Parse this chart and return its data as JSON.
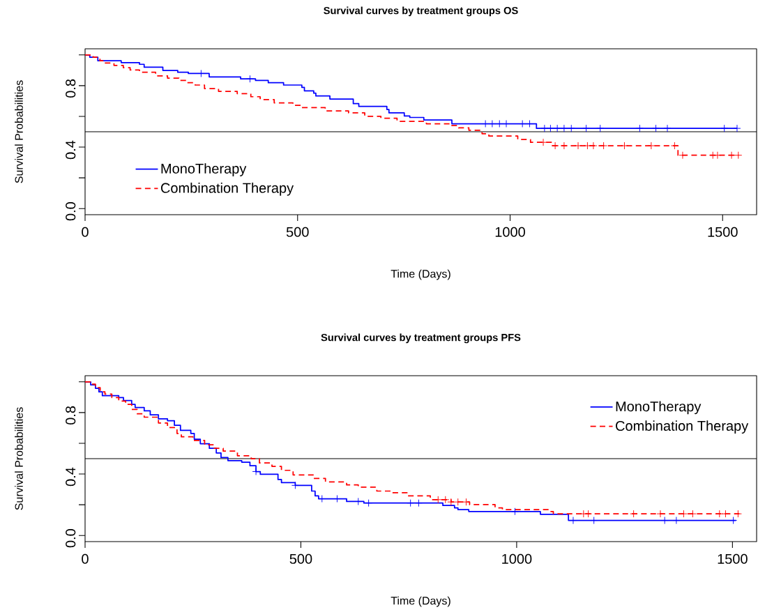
{
  "chart_data": [
    {
      "type": "step",
      "title": "Survival curves by treatment groups OS",
      "xlabel": "Time (Days)",
      "ylabel": "Survival Probabilities",
      "xlim": [
        0,
        1580
      ],
      "ylim": [
        -0.04,
        1.04
      ],
      "xticks": [
        0,
        500,
        1000,
        1500
      ],
      "yticks": [
        {
          "value": 0,
          "label": "0.0"
        },
        {
          "value": 0.2,
          "label": null
        },
        {
          "value": 0.4,
          "label": "0.4"
        },
        {
          "value": 0.6,
          "label": null
        },
        {
          "value": 0.8,
          "label": "0.8"
        },
        {
          "value": 1.0,
          "label": null
        }
      ],
      "legend": "bottom left",
      "ref_lines": [
        {
          "axis": "y",
          "value": 0.5,
          "color": "#000000"
        }
      ],
      "series": [
        {
          "name": "MonoTherapy",
          "color": "#0000ff",
          "line_style": "solid",
          "x": [
            0,
            11,
            30,
            85,
            128,
            139,
            183,
            218,
            243,
            292,
            366,
            401,
            431,
            467,
            510,
            516,
            538,
            543,
            576,
            631,
            644,
            710,
            715,
            751,
            764,
            797,
            863,
            1062,
            1534
          ],
          "values": [
            1.0,
            0.985,
            0.962,
            0.95,
            0.939,
            0.92,
            0.899,
            0.887,
            0.879,
            0.857,
            0.844,
            0.834,
            0.819,
            0.804,
            0.789,
            0.766,
            0.751,
            0.733,
            0.713,
            0.683,
            0.665,
            0.645,
            0.623,
            0.603,
            0.593,
            0.577,
            0.552,
            0.522,
            0.522
          ]
        },
        {
          "name": "Combination Therapy",
          "color": "#ff0000",
          "line_style": "dashed",
          "x": [
            0,
            19,
            35,
            46,
            68,
            90,
            106,
            128,
            166,
            194,
            221,
            238,
            259,
            281,
            314,
            358,
            390,
            412,
            445,
            489,
            510,
            565,
            620,
            658,
            696,
            734,
            803,
            860,
            879,
            903,
            934,
            950,
            1018,
            1048,
            1100,
            1395,
            1537
          ],
          "values": [
            1.0,
            0.985,
            0.962,
            0.947,
            0.932,
            0.917,
            0.902,
            0.887,
            0.864,
            0.849,
            0.834,
            0.819,
            0.804,
            0.781,
            0.763,
            0.748,
            0.728,
            0.709,
            0.688,
            0.672,
            0.657,
            0.635,
            0.623,
            0.6,
            0.588,
            0.567,
            0.552,
            0.54,
            0.525,
            0.51,
            0.487,
            0.472,
            0.449,
            0.431,
            0.409,
            0.347,
            0.347
          ]
        },
        {
          "type": "scatter",
          "marker": "cross",
          "color": "#0000ff",
          "x": [
            273,
            388,
            942,
            958,
            975,
            991,
            1029,
            1046,
            1081,
            1095,
            1111,
            1127,
            1144,
            1179,
            1212,
            1305,
            1343,
            1370,
            1504,
            1534
          ],
          "values": [
            0.879,
            0.844,
            0.552,
            0.552,
            0.552,
            0.552,
            0.552,
            0.552,
            0.522,
            0.522,
            0.522,
            0.522,
            0.522,
            0.522,
            0.522,
            0.522,
            0.522,
            0.522,
            0.522,
            0.522
          ]
        },
        {
          "type": "scatter",
          "marker": "cross",
          "color": "#ff0000",
          "x": [
            1078,
            1106,
            1127,
            1160,
            1182,
            1196,
            1220,
            1269,
            1332,
            1387,
            1406,
            1477,
            1488,
            1521,
            1537
          ],
          "values": [
            0.431,
            0.409,
            0.409,
            0.409,
            0.409,
            0.409,
            0.409,
            0.409,
            0.409,
            0.409,
            0.347,
            0.347,
            0.347,
            0.347,
            0.347
          ]
        }
      ]
    },
    {
      "type": "step",
      "title": "Survival curves by treatment groups PFS",
      "xlabel": "Time (Days)",
      "ylabel": "Survival Probabilities",
      "xlim": [
        0,
        1556
      ],
      "ylim": [
        -0.04,
        1.04
      ],
      "xticks": [
        0,
        500,
        1000,
        1500
      ],
      "yticks": [
        {
          "value": 0,
          "label": "0.0"
        },
        {
          "value": 0.2,
          "label": null
        },
        {
          "value": 0.4,
          "label": "0.4"
        },
        {
          "value": 0.6,
          "label": null
        },
        {
          "value": 0.8,
          "label": "0.8"
        },
        {
          "value": 1.0,
          "label": null
        }
      ],
      "legend": "top right",
      "ref_lines": [
        {
          "axis": "y",
          "value": 0.5,
          "color": "#000000"
        }
      ],
      "series": [
        {
          "name": "MonoTherapy",
          "color": "#0000ff",
          "line_style": "solid",
          "x": [
            0,
            13,
            24,
            32,
            40,
            78,
            89,
            108,
            116,
            137,
            151,
            170,
            191,
            207,
            221,
            245,
            253,
            267,
            288,
            304,
            315,
            331,
            363,
            382,
            396,
            406,
            447,
            455,
            487,
            525,
            533,
            541,
            606,
            646,
            829,
            856,
            864,
            889,
            1055,
            1120,
            1508
          ],
          "values": [
            1.0,
            0.98,
            0.958,
            0.935,
            0.91,
            0.898,
            0.878,
            0.853,
            0.833,
            0.811,
            0.785,
            0.759,
            0.747,
            0.717,
            0.684,
            0.664,
            0.627,
            0.597,
            0.567,
            0.537,
            0.507,
            0.487,
            0.477,
            0.454,
            0.416,
            0.398,
            0.364,
            0.344,
            0.326,
            0.289,
            0.258,
            0.239,
            0.221,
            0.211,
            0.195,
            0.18,
            0.168,
            0.156,
            0.138,
            0.098,
            0.098
          ]
        },
        {
          "name": "Combination Therapy",
          "color": "#ff0000",
          "line_style": "dashed",
          "x": [
            0,
            13,
            24,
            35,
            46,
            62,
            78,
            94,
            108,
            121,
            137,
            170,
            191,
            213,
            223,
            250,
            277,
            299,
            320,
            353,
            385,
            404,
            433,
            455,
            482,
            530,
            557,
            606,
            633,
            676,
            708,
            746,
            800,
            848,
            891,
            950,
            967,
            1074,
            1085,
            1516
          ],
          "values": [
            1.0,
            0.985,
            0.962,
            0.935,
            0.92,
            0.898,
            0.875,
            0.853,
            0.82,
            0.792,
            0.77,
            0.732,
            0.702,
            0.664,
            0.642,
            0.619,
            0.59,
            0.567,
            0.549,
            0.519,
            0.499,
            0.472,
            0.45,
            0.424,
            0.394,
            0.371,
            0.349,
            0.329,
            0.314,
            0.289,
            0.278,
            0.258,
            0.233,
            0.218,
            0.201,
            0.18,
            0.168,
            0.156,
            0.141,
            0.141
          ]
        },
        {
          "type": "scatter",
          "marker": "cross",
          "color": "#0000ff",
          "x": [
            396,
            487,
            549,
            584,
            633,
            657,
            754,
            773,
            996,
            1131,
            1179,
            1343,
            1370,
            1502
          ],
          "values": [
            0.416,
            0.326,
            0.239,
            0.239,
            0.221,
            0.211,
            0.211,
            0.211,
            0.156,
            0.098,
            0.098,
            0.098,
            0.098,
            0.098
          ]
        },
        {
          "type": "scatter",
          "marker": "cross",
          "color": "#ff0000",
          "x": [
            818,
            835,
            848,
            864,
            883,
            1155,
            1166,
            1271,
            1333,
            1387,
            1408,
            1470,
            1484,
            1513
          ],
          "values": [
            0.233,
            0.233,
            0.218,
            0.218,
            0.218,
            0.141,
            0.141,
            0.141,
            0.141,
            0.141,
            0.141,
            0.141,
            0.141,
            0.141
          ]
        }
      ]
    }
  ]
}
